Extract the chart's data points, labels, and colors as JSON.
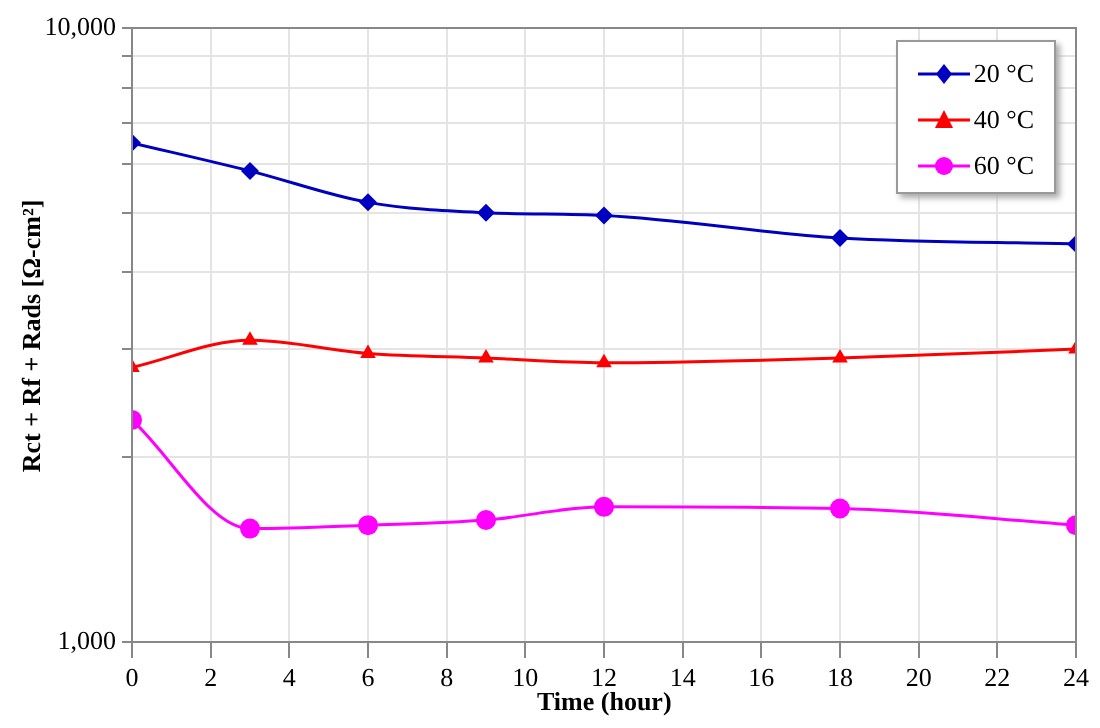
{
  "chart_data": {
    "type": "line",
    "xlabel": "Time (hour)",
    "ylabel": "Rct + Rf + Rads [Ω-cm²]",
    "x": [
      0,
      3,
      6,
      9,
      12,
      18,
      24
    ],
    "series": [
      {
        "name": "20 °C",
        "color": "#0000c0",
        "marker": "diamond",
        "values": [
          6500,
          5850,
          5200,
          5000,
          4950,
          4550,
          4450
        ]
      },
      {
        "name": "40 °C",
        "color": "#ff0000",
        "marker": "triangle",
        "values": [
          2800,
          3100,
          2950,
          2900,
          2850,
          2900,
          3000
        ]
      },
      {
        "name": "60 °C",
        "color": "#ff00ff",
        "marker": "circle",
        "values": [
          2300,
          1530,
          1550,
          1580,
          1660,
          1650,
          1550
        ]
      }
    ],
    "log": "y",
    "xlim": [
      0,
      24
    ],
    "xticks": [
      0,
      2,
      4,
      6,
      8,
      10,
      12,
      14,
      16,
      18,
      20,
      22,
      24
    ],
    "ylim": [
      1000,
      10000
    ],
    "yticks": [
      {
        "value": 1000,
        "label": "1,000"
      },
      {
        "value": 2000,
        "label": null
      },
      {
        "value": 3000,
        "label": null
      },
      {
        "value": 4000,
        "label": null
      },
      {
        "value": 5000,
        "label": null
      },
      {
        "value": 6000,
        "label": null
      },
      {
        "value": 7000,
        "label": null
      },
      {
        "value": 8000,
        "label": null
      },
      {
        "value": 9000,
        "label": null
      },
      {
        "value": 10000,
        "label": "10,000"
      }
    ],
    "grid": true,
    "legend": "top right",
    "line_style": "solid"
  }
}
